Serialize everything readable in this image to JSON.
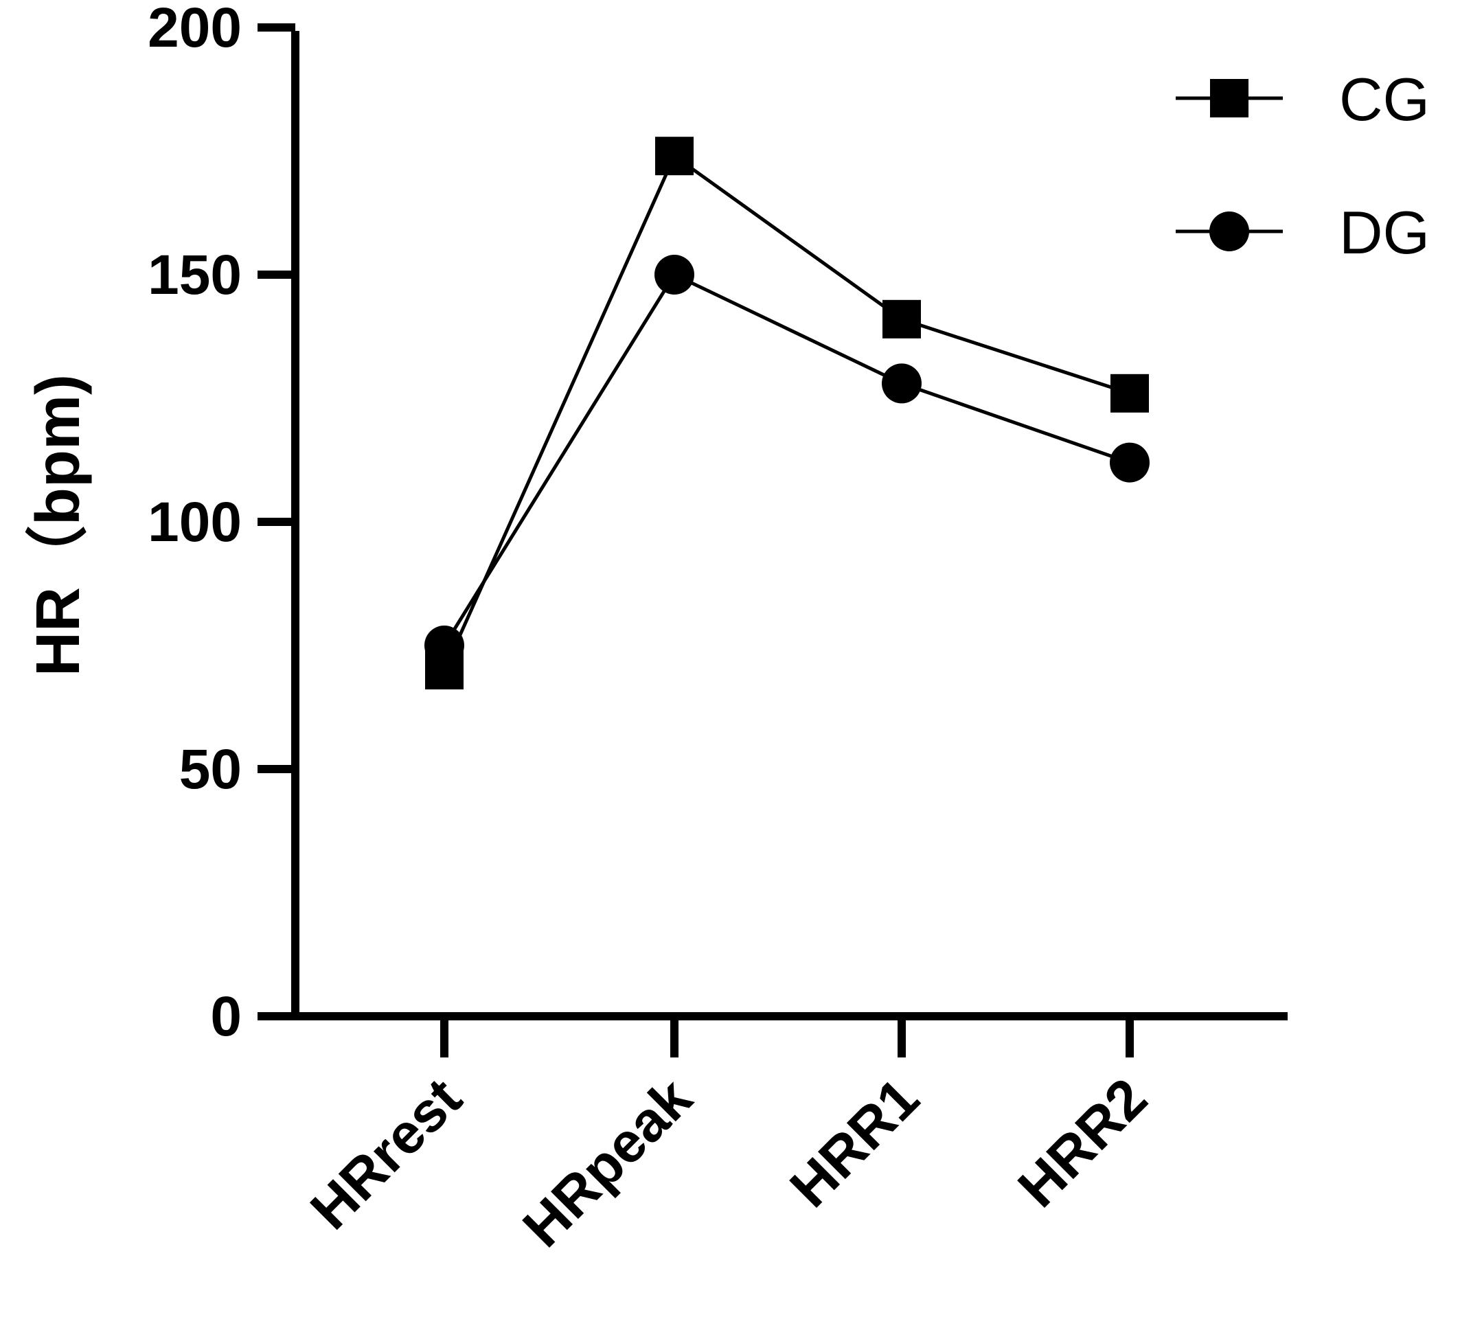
{
  "chart_data": {
    "type": "line",
    "title": "",
    "xlabel": "",
    "ylabel": "HR（bpm)",
    "categories": [
      "HRrest",
      "HRpeak",
      "HRR1",
      "HRR2"
    ],
    "ylim": [
      0,
      200
    ],
    "yticks": [
      0,
      50,
      100,
      150,
      200
    ],
    "grid": false,
    "legend_position": "top-right",
    "series": [
      {
        "name": "CG",
        "marker": "square",
        "values": [
          70,
          174,
          141,
          126
        ]
      },
      {
        "name": "DG",
        "marker": "circle",
        "values": [
          75,
          150,
          128,
          112
        ]
      }
    ],
    "colors": {
      "line": "#000000",
      "marker": "#000000",
      "axis": "#000000"
    }
  }
}
